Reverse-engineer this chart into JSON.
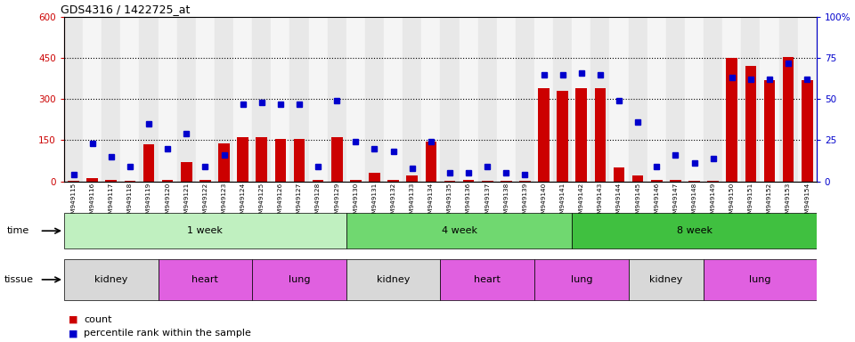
{
  "title": "GDS4316 / 1422725_at",
  "samples": [
    "GSM949115",
    "GSM949116",
    "GSM949117",
    "GSM949118",
    "GSM949119",
    "GSM949120",
    "GSM949121",
    "GSM949122",
    "GSM949123",
    "GSM949124",
    "GSM949125",
    "GSM949126",
    "GSM949127",
    "GSM949128",
    "GSM949129",
    "GSM949130",
    "GSM949131",
    "GSM949132",
    "GSM949133",
    "GSM949134",
    "GSM949135",
    "GSM949136",
    "GSM949137",
    "GSM949138",
    "GSM949139",
    "GSM949140",
    "GSM949141",
    "GSM949142",
    "GSM949143",
    "GSM949144",
    "GSM949145",
    "GSM949146",
    "GSM949147",
    "GSM949148",
    "GSM949149",
    "GSM949150",
    "GSM949151",
    "GSM949152",
    "GSM949153",
    "GSM949154"
  ],
  "counts": [
    2,
    13,
    5,
    3,
    135,
    5,
    70,
    4,
    140,
    160,
    160,
    155,
    155,
    5,
    160,
    5,
    30,
    5,
    20,
    145,
    3,
    5,
    3,
    3,
    3,
    340,
    330,
    340,
    340,
    50,
    20,
    5,
    5,
    3,
    3,
    450,
    420,
    370,
    455,
    370
  ],
  "percentile_ranks_pct": [
    4,
    23,
    15,
    9,
    35,
    20,
    29,
    9,
    16,
    47,
    48,
    47,
    47,
    9,
    49,
    24,
    20,
    18,
    8,
    24,
    5,
    5,
    9,
    5,
    4,
    65,
    65,
    66,
    65,
    49,
    36,
    9,
    16,
    11,
    14,
    63,
    62,
    62,
    72,
    62
  ],
  "bar_color": "#cc0000",
  "dot_color": "#0000cc",
  "left_ylim": [
    0,
    600
  ],
  "left_yticks": [
    0,
    150,
    300,
    450,
    600
  ],
  "right_yticks": [
    0,
    25,
    50,
    75,
    100
  ],
  "left_tick_color": "#cc0000",
  "right_tick_color": "#0000cc",
  "grid_lines": [
    150,
    300,
    450
  ],
  "time_groups": [
    {
      "label": "1 week",
      "start": 0,
      "end": 15,
      "color": "#b0f0b0"
    },
    {
      "label": "4 week",
      "start": 15,
      "end": 27,
      "color": "#70d870"
    },
    {
      "label": "8 week",
      "start": 27,
      "end": 40,
      "color": "#50c850"
    }
  ],
  "tissue_groups": [
    {
      "label": "kidney",
      "start": 0,
      "end": 5,
      "color": "#e0e0e0"
    },
    {
      "label": "heart",
      "start": 5,
      "end": 10,
      "color": "#e070e0"
    },
    {
      "label": "lung",
      "start": 10,
      "end": 15,
      "color": "#e070e0"
    },
    {
      "label": "kidney",
      "start": 15,
      "end": 20,
      "color": "#e0e0e0"
    },
    {
      "label": "heart",
      "start": 20,
      "end": 25,
      "color": "#e070e0"
    },
    {
      "label": "lung",
      "start": 25,
      "end": 30,
      "color": "#e070e0"
    },
    {
      "label": "kidney",
      "start": 30,
      "end": 34,
      "color": "#e0e0e0"
    },
    {
      "label": "lung",
      "start": 34,
      "end": 40,
      "color": "#e070e0"
    }
  ],
  "legend_count_color": "#cc0000",
  "legend_pct_color": "#0000cc",
  "bg_color": "#ffffff"
}
